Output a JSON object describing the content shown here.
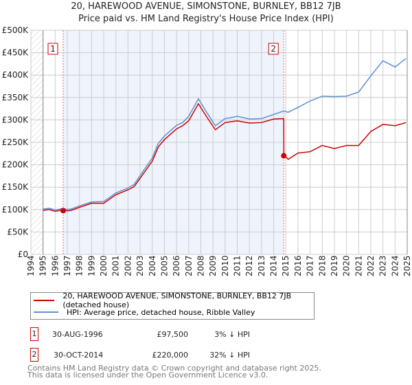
{
  "chart_data": {
    "type": "line",
    "title": "20, HAREWOOD AVENUE, SIMONSTONE, BURNLEY, BB12 7JB",
    "subtitle": "Price paid vs. HM Land Registry's House Price Index (HPI)",
    "xlim": [
      1994,
      2025
    ],
    "ylim": [
      0,
      500000
    ],
    "yticks": [
      0,
      50000,
      100000,
      150000,
      200000,
      250000,
      300000,
      350000,
      400000,
      450000,
      500000
    ],
    "ytick_labels": [
      "£0",
      "£50K",
      "£100K",
      "£150K",
      "£200K",
      "£250K",
      "£300K",
      "£350K",
      "£400K",
      "£450K",
      "£500K"
    ],
    "xticks": [
      1994,
      1995,
      1996,
      1997,
      1998,
      1999,
      2000,
      2001,
      2002,
      2003,
      2004,
      2005,
      2006,
      2007,
      2008,
      2009,
      2010,
      2011,
      2012,
      2013,
      2014,
      2015,
      2016,
      2017,
      2018,
      2019,
      2020,
      2021,
      2022,
      2023,
      2024,
      2025
    ],
    "grid": true,
    "legend_position": "below",
    "series": [
      {
        "name": "20, HAREWOOD AVENUE, SIMONSTONE, BURNLEY, BB12 7JB (detached house)",
        "color": "#cc0000",
        "x": [
          1995,
          1995.5,
          1996,
          1996.66,
          1997,
          1997.3,
          1998,
          1999,
          2000,
          2001,
          2002,
          2002.5,
          2003,
          2004,
          2004.5,
          2005,
          2006,
          2006.5,
          2007,
          2007.8,
          2008.5,
          2009.2,
          2010,
          2010.5,
          2011,
          2012,
          2013,
          2014,
          2014.83,
          2014.84,
          2015.2,
          2016,
          2017,
          2018,
          2019,
          2020,
          2021,
          2022,
          2023,
          2024,
          2024.9
        ],
        "y": [
          100000,
          98000,
          98000,
          97500,
          99000,
          96000,
          107000,
          112000,
          116000,
          131000,
          146000,
          149000,
          172000,
          206000,
          242000,
          254000,
          282000,
          285000,
          300000,
          334000,
          308000,
          276000,
          296000,
          294000,
          300000,
          291000,
          296000,
          300000,
          305000,
          220000,
          214000,
          224000,
          231000,
          241000,
          238000,
          241000,
          245000,
          272000,
          292000,
          285000,
          296000
        ]
      },
      {
        "name": "HPI: Average price, detached house, Ribble Valley",
        "color": "#5b8fd4",
        "x": [
          1995,
          1995.5,
          1996,
          1996.66,
          1997,
          1997.3,
          1998,
          1999,
          2000,
          2001,
          2002,
          2002.5,
          2003,
          2004,
          2004.5,
          2005,
          2006,
          2006.5,
          2007,
          2007.8,
          2008.5,
          2009.2,
          2010,
          2010.5,
          2011,
          2012,
          2013,
          2014,
          2014.83,
          2015.2,
          2016,
          2017,
          2018,
          2019,
          2020,
          2021,
          2022,
          2023,
          2024,
          2024.9
        ],
        "y": [
          103000,
          101000,
          101000,
          100500,
          102000,
          99000,
          110000,
          115000,
          120000,
          135000,
          150000,
          154000,
          178000,
          213000,
          250000,
          262000,
          290000,
          292000,
          310000,
          345000,
          318000,
          285000,
          305000,
          303000,
          310000,
          300000,
          305000,
          310000,
          322000,
          315000,
          330000,
          340000,
          355000,
          350000,
          355000,
          360000,
          400000,
          430000,
          420000,
          435000
        ]
      }
    ],
    "annotations": [
      {
        "label": "1",
        "x": 1996.66,
        "y": 97500
      },
      {
        "label": "2",
        "x": 2014.83,
        "y": 220000
      }
    ]
  },
  "legend": {
    "property": "20, HAREWOOD AVENUE, SIMONSTONE, BURNLEY, BB12 7JB (detached house)",
    "hpi": "HPI: Average price, detached house, Ribble Valley"
  },
  "transactions": [
    {
      "num": "1",
      "date": "30-AUG-1996",
      "price": "£97,500",
      "hpi": "3% ↓ HPI"
    },
    {
      "num": "2",
      "date": "30-OCT-2014",
      "price": "£220,000",
      "hpi": "32% ↓ HPI"
    }
  ],
  "footer": {
    "line1": "Contains HM Land Registry data © Crown copyright and database right 2025.",
    "line2": "This data is licensed under the Open Government Licence v3.0."
  }
}
